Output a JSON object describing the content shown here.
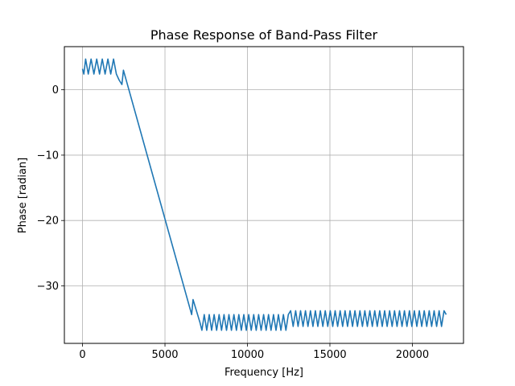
{
  "chart_data": {
    "type": "line",
    "title": "Phase Response of Band-Pass Filter",
    "xlabel": "Frequency [Hz]",
    "ylabel": "Phase [radian]",
    "xlim": [
      -1100,
      23100
    ],
    "ylim": [
      -38.8,
      6.6
    ],
    "x_ticks": [
      0,
      5000,
      10000,
      15000,
      20000
    ],
    "x_tick_labels": [
      "0",
      "5000",
      "10000",
      "15000",
      "20000"
    ],
    "y_ticks": [
      0,
      -10,
      -20,
      -30
    ],
    "y_tick_labels": [
      "0",
      "−10",
      "−20",
      "−30"
    ],
    "grid": true,
    "line_color": "#1f77b4",
    "series": [
      {
        "name": "",
        "x": [
          0,
          80,
          190,
          350,
          520,
          690,
          860,
          1030,
          1200,
          1370,
          1540,
          1710,
          1880,
          2050,
          2220,
          2390,
          2480,
          6620,
          6700,
          7120,
          7240,
          7380,
          7530,
          7680,
          7830,
          7980,
          8130,
          8280,
          8430,
          8580,
          8730,
          8880,
          9030,
          9180,
          9330,
          9480,
          9630,
          9780,
          9930,
          10080,
          10230,
          10380,
          10530,
          10680,
          10830,
          10980,
          11130,
          11280,
          11430,
          11580,
          11730,
          11880,
          12030,
          12180,
          12330,
          12480,
          12620,
          12770,
          12920,
          13070,
          13220,
          13370,
          13520,
          13670,
          13820,
          13970,
          14120,
          14270,
          14420,
          14570,
          14720,
          14870,
          15020,
          15170,
          15320,
          15470,
          15620,
          15770,
          15920,
          16070,
          16220,
          16370,
          16520,
          16670,
          16820,
          16970,
          17120,
          17270,
          17420,
          17570,
          17720,
          17870,
          18020,
          18170,
          18320,
          18470,
          18620,
          18770,
          18920,
          19070,
          19220,
          19370,
          19520,
          19670,
          19820,
          19970,
          20120,
          20270,
          20420,
          20570,
          20720,
          20870,
          21020,
          21170,
          21320,
          21470,
          21620,
          21770,
          21920,
          22050
        ],
        "y": [
          3.2,
          2.4,
          4.7,
          2.4,
          4.7,
          2.4,
          4.7,
          2.4,
          4.7,
          2.4,
          4.7,
          2.4,
          4.7,
          2.4,
          1.5,
          0.8,
          3.0,
          -34.4,
          -32.1,
          -35.6,
          -36.8,
          -34.4,
          -36.8,
          -34.4,
          -36.8,
          -34.4,
          -36.8,
          -34.4,
          -36.8,
          -34.4,
          -36.8,
          -34.4,
          -36.8,
          -34.4,
          -36.8,
          -34.4,
          -36.8,
          -34.4,
          -36.8,
          -34.4,
          -36.8,
          -34.4,
          -36.8,
          -34.4,
          -36.8,
          -34.4,
          -36.8,
          -34.4,
          -36.8,
          -34.4,
          -36.8,
          -34.4,
          -36.8,
          -34.4,
          -36.8,
          -34.4,
          -33.8,
          -36.2,
          -33.8,
          -36.2,
          -33.8,
          -36.2,
          -33.8,
          -36.2,
          -33.8,
          -36.2,
          -33.8,
          -36.2,
          -33.8,
          -36.2,
          -33.8,
          -36.2,
          -33.8,
          -36.2,
          -33.8,
          -36.2,
          -33.8,
          -36.2,
          -33.8,
          -36.2,
          -33.8,
          -36.2,
          -33.8,
          -36.2,
          -33.8,
          -36.2,
          -33.8,
          -36.2,
          -33.8,
          -36.2,
          -33.8,
          -36.2,
          -33.8,
          -36.2,
          -33.8,
          -36.2,
          -33.8,
          -36.2,
          -33.8,
          -36.2,
          -33.8,
          -36.2,
          -33.8,
          -36.2,
          -33.8,
          -36.2,
          -33.8,
          -36.2,
          -33.8,
          -36.2,
          -33.8,
          -36.2,
          -33.8,
          -36.2,
          -33.8,
          -36.2,
          -33.8,
          -36.2,
          -33.8,
          -34.4
        ]
      }
    ]
  }
}
